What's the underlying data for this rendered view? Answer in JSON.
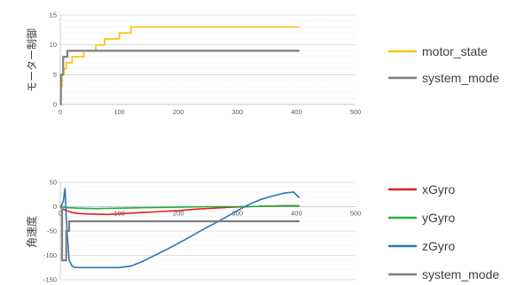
{
  "chart_data": [
    {
      "type": "line",
      "title": "",
      "xlabel": "",
      "ylabel": "モーター制御",
      "xlim": [
        0,
        500
      ],
      "ylim": [
        0,
        15
      ],
      "x_ticks": [
        0,
        100,
        200,
        300,
        400,
        500
      ],
      "y_ticks": [
        0,
        5,
        10,
        15
      ],
      "grid": true,
      "legend_position": "right",
      "series": [
        {
          "name": "motor_state",
          "color": "#FFC000",
          "points": [
            [
              0,
              3
            ],
            [
              3,
              3
            ],
            [
              3,
              5
            ],
            [
              6,
              5
            ],
            [
              6,
              6
            ],
            [
              10,
              6
            ],
            [
              10,
              7
            ],
            [
              20,
              7
            ],
            [
              20,
              8
            ],
            [
              40,
              8
            ],
            [
              40,
              9
            ],
            [
              60,
              9
            ],
            [
              60,
              10
            ],
            [
              75,
              10
            ],
            [
              75,
              11
            ],
            [
              100,
              11
            ],
            [
              100,
              12
            ],
            [
              120,
              12
            ],
            [
              120,
              13
            ],
            [
              405,
              13
            ]
          ]
        },
        {
          "name": "system_mode",
          "color": "#7F7F7F",
          "points": [
            [
              0,
              0
            ],
            [
              1,
              0
            ],
            [
              1,
              5
            ],
            [
              5,
              5
            ],
            [
              5,
              8
            ],
            [
              12,
              8
            ],
            [
              12,
              9
            ],
            [
              405,
              9
            ]
          ]
        }
      ]
    },
    {
      "type": "line",
      "title": "",
      "xlabel": "",
      "ylabel": "角速度",
      "xlim": [
        0,
        500
      ],
      "ylim": [
        -150,
        50
      ],
      "x_ticks": [
        0,
        100,
        200,
        300,
        400,
        500
      ],
      "y_ticks": [
        50,
        0,
        -50,
        -100,
        -150
      ],
      "grid": true,
      "legend_position": "right",
      "series": [
        {
          "name": "xGyro",
          "color": "#E02020",
          "points": [
            [
              0,
              0
            ],
            [
              5,
              -5
            ],
            [
              10,
              -8
            ],
            [
              20,
              -12
            ],
            [
              30,
              -14
            ],
            [
              50,
              -15
            ],
            [
              80,
              -16
            ],
            [
              110,
              -14
            ],
            [
              140,
              -12
            ],
            [
              170,
              -10
            ],
            [
              200,
              -8
            ],
            [
              230,
              -5
            ],
            [
              260,
              -3
            ],
            [
              290,
              -1
            ],
            [
              320,
              0
            ],
            [
              350,
              1
            ],
            [
              380,
              2
            ],
            [
              405,
              2
            ]
          ]
        },
        {
          "name": "yGyro",
          "color": "#20B040",
          "points": [
            [
              0,
              0
            ],
            [
              10,
              -2
            ],
            [
              30,
              -3
            ],
            [
              60,
              -4
            ],
            [
              100,
              -3
            ],
            [
              150,
              -2
            ],
            [
              200,
              -1
            ],
            [
              250,
              0
            ],
            [
              300,
              0
            ],
            [
              350,
              1
            ],
            [
              405,
              1
            ]
          ]
        },
        {
          "name": "zGyro",
          "color": "#2E75B6",
          "points": [
            [
              0,
              0
            ],
            [
              5,
              10
            ],
            [
              8,
              38
            ],
            [
              10,
              -20
            ],
            [
              12,
              -60
            ],
            [
              15,
              -110
            ],
            [
              20,
              -122
            ],
            [
              25,
              -125
            ],
            [
              100,
              -125
            ],
            [
              120,
              -122
            ],
            [
              140,
              -112
            ],
            [
              160,
              -100
            ],
            [
              180,
              -88
            ],
            [
              200,
              -75
            ],
            [
              220,
              -62
            ],
            [
              240,
              -48
            ],
            [
              260,
              -35
            ],
            [
              280,
              -22
            ],
            [
              300,
              -8
            ],
            [
              320,
              5
            ],
            [
              340,
              15
            ],
            [
              360,
              22
            ],
            [
              380,
              28
            ],
            [
              395,
              30
            ],
            [
              405,
              18
            ]
          ]
        },
        {
          "name": "system_mode",
          "color": "#7F7F7F",
          "points": [
            [
              0,
              0
            ],
            [
              3,
              0
            ],
            [
              3,
              -110
            ],
            [
              10,
              -110
            ],
            [
              10,
              -50
            ],
            [
              15,
              -50
            ],
            [
              15,
              -30
            ],
            [
              405,
              -30
            ]
          ]
        }
      ]
    }
  ]
}
